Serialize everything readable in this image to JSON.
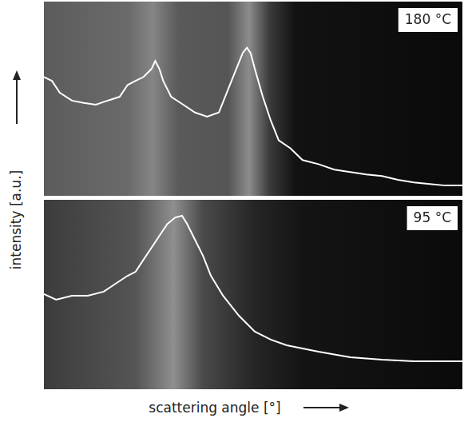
{
  "chart_data": [
    {
      "type": "line",
      "annotation": "180 °C",
      "tick_labels": false,
      "color": "#ffffff",
      "xlim": [
        0,
        100
      ],
      "ylim": [
        0,
        100
      ],
      "x": [
        0,
        1.9,
        3.8,
        6.7,
        9.5,
        12.4,
        15.2,
        18.1,
        20.0,
        21.9,
        23.8,
        25.7,
        26.6,
        27.6,
        28.5,
        30.4,
        33.3,
        36.1,
        39.0,
        41.8,
        43.7,
        45.6,
        47.5,
        48.5,
        49.4,
        50.4,
        52.3,
        54.2,
        56.1,
        58.9,
        61.8,
        65.6,
        69.4,
        73.2,
        77.0,
        80.8,
        84.6,
        88.4,
        92.2,
        96.0,
        100
      ],
      "values": [
        61.2,
        59.2,
        53.1,
        49.0,
        47.8,
        46.9,
        49.0,
        51.0,
        57.1,
        59.2,
        61.2,
        65.3,
        69.4,
        65.3,
        59.2,
        51.0,
        46.9,
        42.9,
        40.8,
        42.9,
        53.1,
        63.3,
        73.5,
        76.3,
        73.5,
        65.3,
        51.0,
        38.8,
        28.6,
        24.5,
        18.4,
        16.3,
        13.5,
        12.2,
        11.0,
        10.2,
        8.2,
        6.9,
        6.1,
        5.3,
        5.3
      ]
    },
    {
      "type": "line",
      "annotation": "95 °C",
      "tick_labels": false,
      "color": "#ffffff",
      "xlim": [
        0,
        100
      ],
      "ylim": [
        0,
        100
      ],
      "x": [
        0,
        2.9,
        6.7,
        10.5,
        14.3,
        17.1,
        20.0,
        21.9,
        23.8,
        25.7,
        27.6,
        29.5,
        31.4,
        33.0,
        34.2,
        36.1,
        38.0,
        39.9,
        42.8,
        46.6,
        50.4,
        54.2,
        58.0,
        65.6,
        73.2,
        80.8,
        88.4,
        100
      ],
      "values": [
        50.2,
        47.3,
        49.4,
        49.4,
        51.5,
        55.7,
        59.9,
        62.0,
        68.4,
        74.7,
        81.0,
        87.3,
        90.7,
        91.6,
        87.3,
        78.9,
        70.5,
        59.9,
        49.4,
        38.8,
        30.4,
        26.2,
        23.2,
        19.8,
        16.9,
        15.6,
        14.8,
        14.8
      ]
    }
  ],
  "xlabel": "scattering angle [°]",
  "ylabel": "intensity [a.u.]"
}
